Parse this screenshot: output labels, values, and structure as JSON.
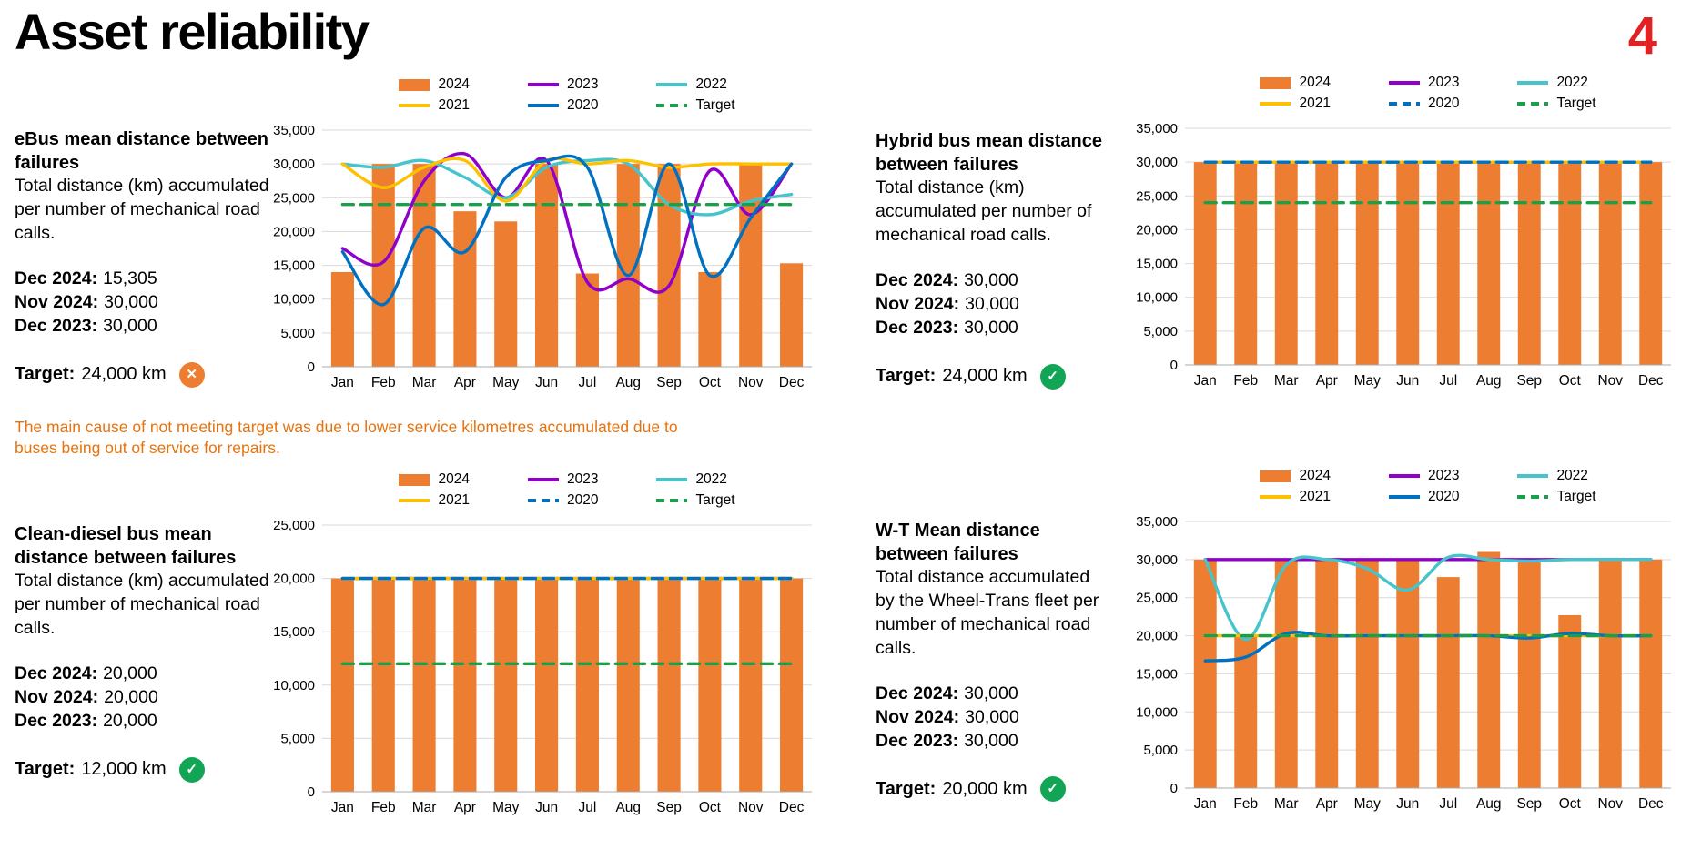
{
  "page": {
    "title": "Asset reliability",
    "page_number": "4"
  },
  "icons": {
    "fail": "✕",
    "pass": "✓"
  },
  "panels": [
    {
      "heading": "eBus mean distance between failures",
      "description": "Total distance (km) accumulated per number of mechanical road calls.",
      "stats": [
        {
          "label": "Dec 2024:",
          "value": "15,305"
        },
        {
          "label": "Nov 2024:",
          "value": "30,000"
        },
        {
          "label": "Dec 2023:",
          "value": "30,000"
        }
      ],
      "target_label": "Target:",
      "target_value": "24,000 km",
      "target_met": false,
      "note": "The main cause of not meeting target was due to lower service kilometres accumulated due to buses being out of service for repairs."
    },
    {
      "heading": "Hybrid bus mean distance between failures",
      "description": "Total distance (km) accumulated per number of mechanical road calls.",
      "stats": [
        {
          "label": "Dec 2024:",
          "value": "30,000"
        },
        {
          "label": "Nov 2024:",
          "value": "30,000"
        },
        {
          "label": "Dec 2023:",
          "value": "30,000"
        }
      ],
      "target_label": "Target:",
      "target_value": "24,000 km",
      "target_met": true
    },
    {
      "heading": "Clean-diesel bus mean distance between failures",
      "description": "Total distance (km) accumulated per number of mechanical road calls.",
      "stats": [
        {
          "label": "Dec 2024:",
          "value": "20,000"
        },
        {
          "label": "Nov 2024:",
          "value": "20,000"
        },
        {
          "label": "Dec 2023:",
          "value": "20,000"
        }
      ],
      "target_label": "Target:",
      "target_value": "12,000 km",
      "target_met": true
    },
    {
      "heading": "W-T Mean distance between failures",
      "description": "Total distance accumulated by the Wheel-Trans fleet per number of mechanical road calls.",
      "stats": [
        {
          "label": "Dec 2024:",
          "value": "30,000"
        },
        {
          "label": "Nov 2024:",
          "value": "30,000"
        },
        {
          "label": "Dec 2023:",
          "value": "30,000"
        }
      ],
      "target_label": "Target:",
      "target_value": "20,000 km",
      "target_met": true
    }
  ],
  "chart_data": [
    {
      "type": "bar",
      "title": "eBus mean distance between failures",
      "xlabel": "",
      "ylabel": "",
      "legend_position": "top",
      "grid": true,
      "categories": [
        "Jan",
        "Feb",
        "Mar",
        "Apr",
        "May",
        "Jun",
        "Jul",
        "Aug",
        "Sep",
        "Oct",
        "Nov",
        "Dec"
      ],
      "ylim": [
        0,
        35000
      ],
      "yticks": [
        0,
        5000,
        10000,
        15000,
        20000,
        25000,
        30000,
        35000
      ],
      "bar_series": {
        "name": "2024",
        "color": "#ED7D31",
        "values": [
          14000,
          30000,
          30000,
          23000,
          21500,
          30000,
          13800,
          30000,
          30000,
          14000,
          30000,
          15305
        ]
      },
      "line_series": [
        {
          "name": "2023",
          "color": "#9100CB",
          "dash": false,
          "values": [
            17500,
            15500,
            27500,
            31500,
            25000,
            30500,
            12500,
            13000,
            12000,
            29000,
            22500,
            30000
          ]
        },
        {
          "name": "2022",
          "color": "#45C5CB",
          "dash": false,
          "values": [
            30000,
            29500,
            30500,
            28000,
            25000,
            29500,
            30500,
            30000,
            24000,
            22500,
            24500,
            25500
          ]
        },
        {
          "name": "2021",
          "color": "#FFC000",
          "dash": false,
          "values": [
            30000,
            26500,
            29500,
            30500,
            24500,
            30500,
            30000,
            30500,
            29500,
            30000,
            30000,
            30000
          ]
        },
        {
          "name": "2020",
          "color": "#0070C0",
          "dash": false,
          "values": [
            17000,
            9200,
            20500,
            17000,
            28000,
            30500,
            29500,
            13500,
            30000,
            13500,
            22000,
            30000
          ]
        },
        {
          "name": "Target",
          "color": "#18A04A",
          "dash": true,
          "values": 24000
        }
      ]
    },
    {
      "type": "bar",
      "title": "Hybrid bus mean distance between failures",
      "xlabel": "",
      "ylabel": "",
      "legend_position": "top",
      "grid": true,
      "categories": [
        "Jan",
        "Feb",
        "Mar",
        "Apr",
        "May",
        "Jun",
        "Jul",
        "Aug",
        "Sep",
        "Oct",
        "Nov",
        "Dec"
      ],
      "ylim": [
        0,
        35000
      ],
      "yticks": [
        0,
        5000,
        10000,
        15000,
        20000,
        25000,
        30000,
        35000
      ],
      "bar_series": {
        "name": "2024",
        "color": "#ED7D31",
        "values": [
          30000,
          30000,
          30000,
          30000,
          30000,
          30000,
          30000,
          30000,
          30000,
          30000,
          30000,
          30000
        ]
      },
      "line_series": [
        {
          "name": "2023",
          "color": "#9100CB",
          "dash": false,
          "values": 30000
        },
        {
          "name": "2022",
          "color": "#45C5CB",
          "dash": false,
          "values": 30000
        },
        {
          "name": "2021",
          "color": "#FFC000",
          "dash": false,
          "values": 30000
        },
        {
          "name": "2020",
          "color": "#0070C0",
          "dash": true,
          "values": 30000
        },
        {
          "name": "Target",
          "color": "#18A04A",
          "dash": true,
          "values": 24000
        }
      ]
    },
    {
      "type": "bar",
      "title": "Clean-diesel bus mean distance between failures",
      "xlabel": "",
      "ylabel": "",
      "legend_position": "top",
      "grid": true,
      "categories": [
        "Jan",
        "Feb",
        "Mar",
        "Apr",
        "May",
        "Jun",
        "Jul",
        "Aug",
        "Sep",
        "Oct",
        "Nov",
        "Dec"
      ],
      "ylim": [
        0,
        25000
      ],
      "yticks": [
        0,
        5000,
        10000,
        15000,
        20000,
        25000
      ],
      "bar_series": {
        "name": "2024",
        "color": "#ED7D31",
        "values": [
          20000,
          20000,
          20000,
          20000,
          20000,
          20000,
          20000,
          20000,
          20000,
          20000,
          20000,
          20000
        ]
      },
      "line_series": [
        {
          "name": "2023",
          "color": "#9100CB",
          "dash": false,
          "values": 20000
        },
        {
          "name": "2022",
          "color": "#45C5CB",
          "dash": false,
          "values": 20000
        },
        {
          "name": "2021",
          "color": "#FFC000",
          "dash": false,
          "values": 20000
        },
        {
          "name": "2020",
          "color": "#0070C0",
          "dash": true,
          "values": 20000
        },
        {
          "name": "Target",
          "color": "#18A04A",
          "dash": true,
          "values": 12000
        }
      ]
    },
    {
      "type": "bar",
      "title": "W-T Mean distance between failures",
      "xlabel": "",
      "ylabel": "",
      "legend_position": "top",
      "grid": true,
      "categories": [
        "Jan",
        "Feb",
        "Mar",
        "Apr",
        "May",
        "Jun",
        "Jul",
        "Aug",
        "Sep",
        "Oct",
        "Nov",
        "Dec"
      ],
      "ylim": [
        0,
        35000
      ],
      "yticks": [
        0,
        5000,
        10000,
        15000,
        20000,
        25000,
        30000,
        35000
      ],
      "bar_series": {
        "name": "2024",
        "color": "#ED7D31",
        "values": [
          30000,
          20000,
          30000,
          30000,
          30000,
          30000,
          27700,
          31000,
          30000,
          22700,
          30000,
          30000
        ]
      },
      "line_series": [
        {
          "name": "2023",
          "color": "#9100CB",
          "dash": false,
          "values": 30000
        },
        {
          "name": "2022",
          "color": "#45C5CB",
          "dash": false,
          "values": [
            30000,
            19500,
            29300,
            30000,
            28800,
            26000,
            30300,
            30000,
            29800,
            30000,
            30000,
            30000
          ]
        },
        {
          "name": "2021",
          "color": "#FFC000",
          "dash": false,
          "values": 20000
        },
        {
          "name": "2020",
          "color": "#0070C0",
          "dash": false,
          "values": [
            16700,
            17200,
            20300,
            20000,
            20000,
            20000,
            20000,
            20000,
            19700,
            20300,
            20000,
            20000
          ]
        },
        {
          "name": "Target",
          "color": "#18A04A",
          "dash": true,
          "values": 20000
        }
      ]
    }
  ]
}
